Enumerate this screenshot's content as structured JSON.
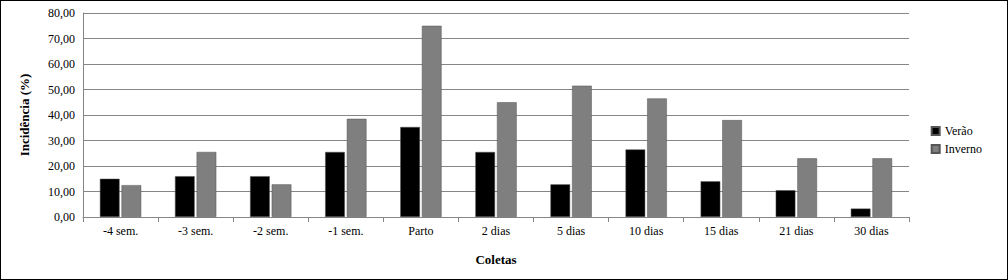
{
  "chart_data": {
    "type": "bar",
    "x_label": "Coletas",
    "y_label": "Incidência (%)",
    "categories": [
      "-4 sem.",
      "-3 sem.",
      "-2 sem.",
      "-1 sem.",
      "Parto",
      "2 dias",
      "5 dias",
      "10 dias",
      "15 dias",
      "21 dias",
      "30 dias"
    ],
    "series": [
      {
        "name": "Verão",
        "color": "#000000",
        "values": [
          15,
          16,
          16,
          25.5,
          35.3,
          25.5,
          12.8,
          26.5,
          14,
          10.5,
          3.3
        ]
      },
      {
        "name": "Inverno",
        "color": "#7f7f7f",
        "values": [
          12.5,
          25.5,
          12.8,
          38.5,
          75,
          45,
          51.5,
          46.5,
          38,
          23,
          23
        ]
      }
    ],
    "ylim": [
      0,
      80
    ],
    "yticks": [
      {
        "value": 0,
        "label": "0,00"
      },
      {
        "value": 10,
        "label": "10,00"
      },
      {
        "value": 20,
        "label": "20,00"
      },
      {
        "value": 30,
        "label": "30,00"
      },
      {
        "value": 40,
        "label": "40,00"
      },
      {
        "value": 50,
        "label": "50,00"
      },
      {
        "value": 60,
        "label": "60,00"
      },
      {
        "value": 70,
        "label": "70,00"
      },
      {
        "value": 80,
        "label": "80,00"
      }
    ],
    "grid": true,
    "legend": "right"
  }
}
